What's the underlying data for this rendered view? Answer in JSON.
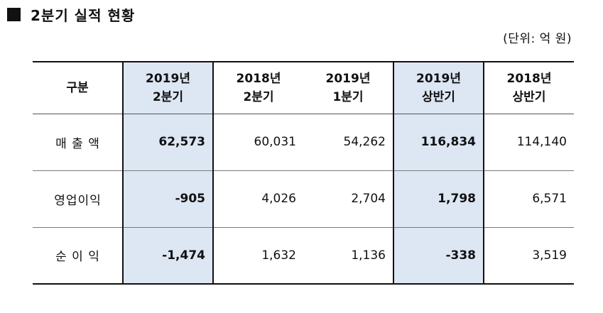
{
  "heading": {
    "text": "2분기 실적 현황"
  },
  "unit_note": "(단위: 억 원)",
  "table": {
    "corner": "구분",
    "columns": [
      {
        "line1": "2019년",
        "line2": "2분기",
        "highlight": true
      },
      {
        "line1": "2018년",
        "line2": "2분기",
        "highlight": false
      },
      {
        "line1": "2019년",
        "line2": "1분기",
        "highlight": false
      },
      {
        "line1": "2019년",
        "line2": "상반기",
        "highlight": true
      },
      {
        "line1": "2018년",
        "line2": "상반기",
        "highlight": false
      }
    ],
    "rows": [
      {
        "label": "매 출 액",
        "values": [
          "62,573",
          "60,031",
          "54,262",
          "116,834",
          "114,140"
        ]
      },
      {
        "label": "영업이익",
        "values": [
          "-905",
          "4,026",
          "2,704",
          "1,798",
          "6,571"
        ]
      },
      {
        "label": "순 이 익",
        "values": [
          "-1,474",
          "1,632",
          "1,136",
          "-338",
          "3,519"
        ]
      }
    ]
  },
  "colors": {
    "highlight_fill": "#dde6f3",
    "border_dark": "#111111",
    "border_light": "#7a7a7a"
  }
}
